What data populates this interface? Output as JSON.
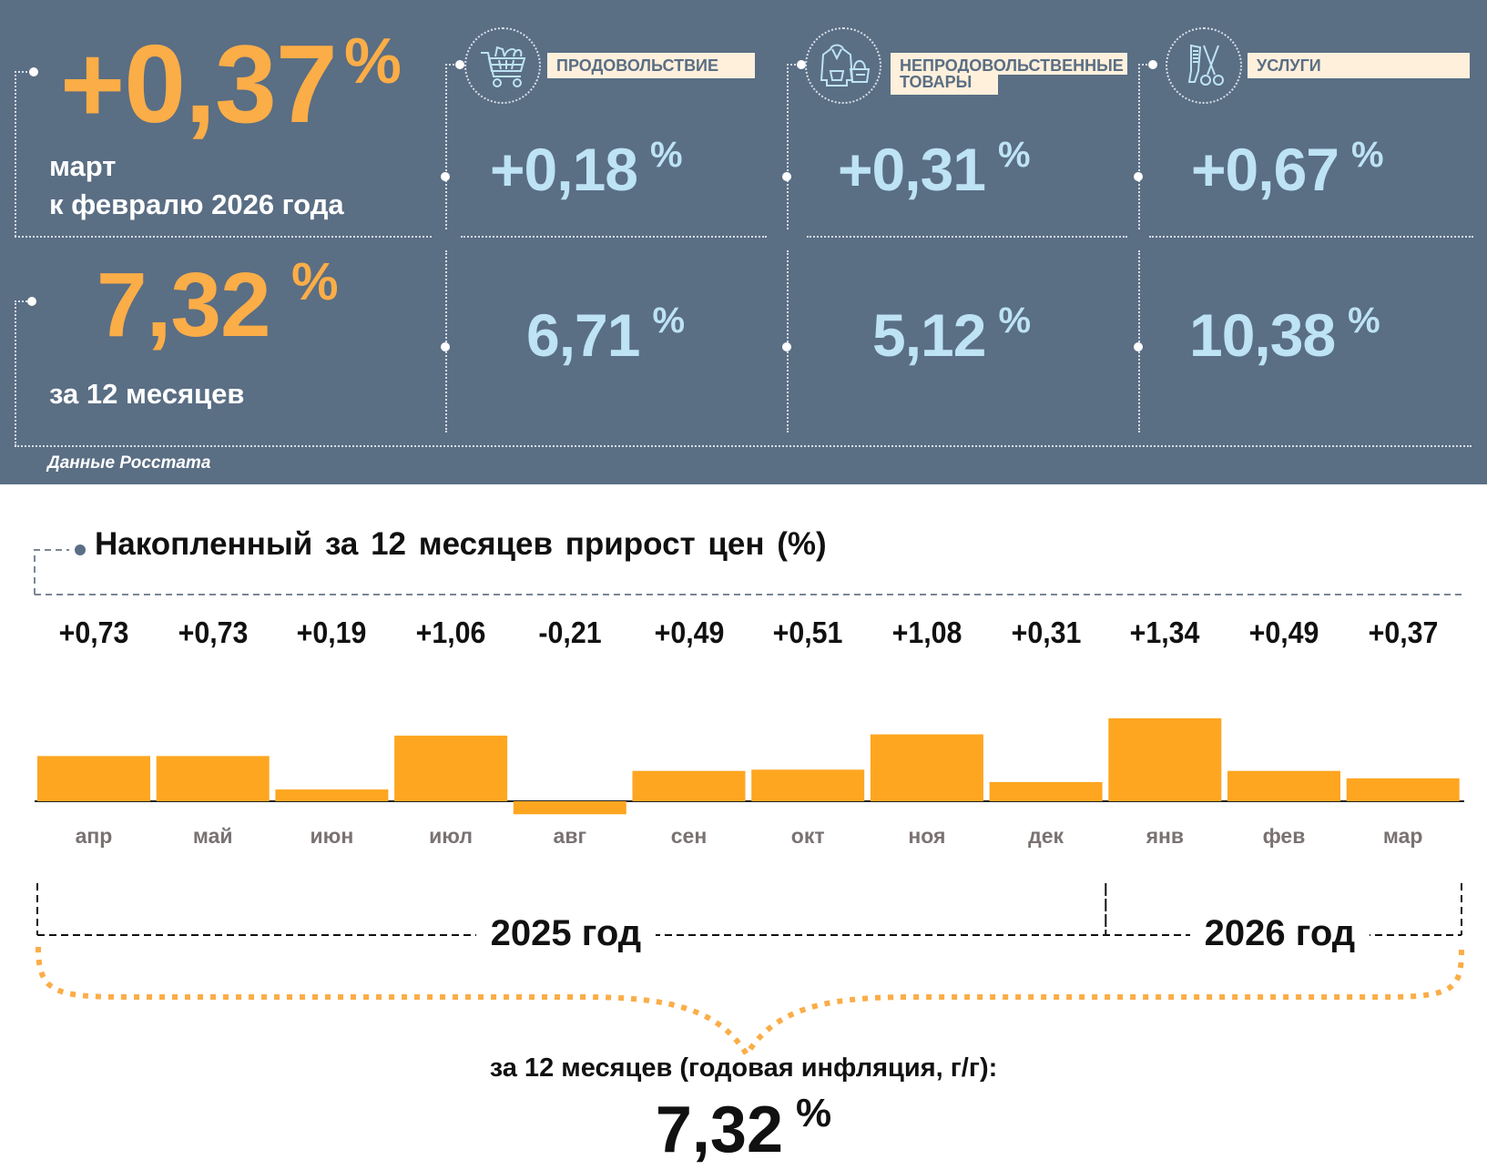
{
  "header": {
    "monthly": {
      "value": "+0,37",
      "unit": "%",
      "caption_line1": "март",
      "caption_line2": "к февралю 2026 года"
    },
    "annual": {
      "value": "7,32",
      "unit": "%",
      "caption": "за 12 месяцев"
    },
    "source": "Данные Росстата",
    "categories": [
      {
        "icon": "shopping-cart-icon",
        "label": "ПРОДОВОЛЬСТВИЕ",
        "monthly": "+0,18",
        "annual": "6,71",
        "unit": "%"
      },
      {
        "icon": "hoodie-and-bag-icon",
        "label_line1": "НЕПРОДОВОЛЬСТВЕННЫЕ",
        "label_line2": "ТОВАРЫ",
        "monthly": "+0,31",
        "annual": "5,12",
        "unit": "%"
      },
      {
        "icon": "comb-and-scissors-icon",
        "label": "УСЛУГИ",
        "monthly": "+0,67",
        "annual": "10,38",
        "unit": "%"
      }
    ]
  },
  "colors": {
    "panel_bg": "#5a6e84",
    "accent_orange": "#fbad47",
    "bar_orange": "#fea620",
    "light_blue": "#bde3f4",
    "label_bg": "#fff0dc"
  },
  "chart_data": {
    "type": "bar",
    "title": "Накопленный за 12 месяцев прирост цен (%)",
    "categories": [
      "апр",
      "май",
      "июн",
      "июл",
      "авг",
      "сен",
      "окт",
      "ноя",
      "дек",
      "янв",
      "фев",
      "мар"
    ],
    "values": [
      0.73,
      0.73,
      0.19,
      1.06,
      -0.21,
      0.49,
      0.51,
      1.08,
      0.31,
      1.34,
      0.49,
      0.37
    ],
    "value_labels": [
      "+0,73",
      "+0,73",
      "+0,19",
      "+1,06",
      "-0,21",
      "+0,49",
      "+0,51",
      "+1,08",
      "+0,31",
      "+1,34",
      "+0,49",
      "+0,37"
    ],
    "year_groups": [
      {
        "label": "2025 год",
        "months": 9
      },
      {
        "label": "2026 год",
        "months": 3
      }
    ],
    "xlabel": "",
    "ylabel": "",
    "ylim": [
      -0.3,
      1.5
    ],
    "grid": false,
    "summary_caption": "за 12 месяцев (годовая инфляция, г/г):",
    "summary_value": "7,32",
    "summary_unit": "%"
  }
}
